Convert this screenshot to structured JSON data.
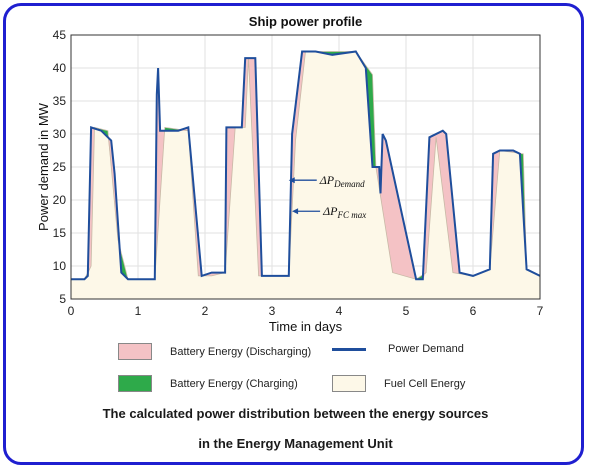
{
  "chart_data": {
    "type": "area",
    "title": "Ship power profile",
    "xlabel": "Time in days",
    "ylabel": "Power demand in MW",
    "xlim": [
      0,
      7
    ],
    "ylim": [
      5,
      45
    ],
    "xticks": [
      0,
      1,
      2,
      3,
      4,
      5,
      6,
      7
    ],
    "yticks": [
      5,
      10,
      15,
      20,
      25,
      30,
      35,
      40,
      45
    ],
    "grid": true,
    "annotations": [
      {
        "base": "ΔP",
        "sub": "Demand",
        "x": 3.25,
        "y": 23.0
      },
      {
        "base": "ΔP",
        "sub": "FC max",
        "x": 3.3,
        "y": 18.3
      }
    ],
    "demand": {
      "name": "Power Demand",
      "color": "#1f4e9c",
      "x": [
        0,
        0.2,
        0.25,
        0.3,
        0.45,
        0.6,
        0.65,
        0.75,
        0.85,
        1.25,
        1.28,
        1.3,
        1.33,
        1.6,
        1.75,
        1.95,
        2.1,
        2.3,
        2.32,
        2.55,
        2.6,
        2.75,
        2.85,
        3.25,
        3.3,
        3.45,
        3.55,
        3.65,
        3.9,
        4.25,
        4.4,
        4.5,
        4.6,
        4.62,
        4.65,
        4.7,
        5.15,
        5.25,
        5.35,
        5.55,
        5.6,
        5.8,
        6.0,
        6.25,
        6.3,
        6.4,
        6.6,
        6.7,
        6.8,
        7.0
      ],
      "y": [
        8,
        8,
        8.5,
        31,
        30.5,
        29,
        24,
        9,
        8,
        8,
        36,
        40,
        30.5,
        30.5,
        31,
        8.5,
        9,
        9,
        31,
        31,
        41.5,
        41.5,
        8.5,
        8.5,
        30,
        42.5,
        42.5,
        42.5,
        42,
        42.5,
        40,
        25,
        25,
        21,
        30,
        29,
        8,
        8,
        29.5,
        30.5,
        30,
        9,
        8.5,
        9.5,
        27,
        27.5,
        27.5,
        27,
        9.5,
        8.5
      ]
    },
    "fuel_cell": {
      "name": "Fuel Cell Energy",
      "color": "#fdf8e8",
      "x": [
        0,
        0.2,
        0.3,
        0.35,
        0.55,
        0.7,
        0.85,
        1.25,
        1.4,
        1.75,
        1.9,
        2.1,
        2.3,
        2.45,
        2.6,
        2.65,
        2.8,
        3.25,
        3.35,
        3.5,
        4.25,
        4.5,
        4.55,
        4.8,
        5.15,
        5.3,
        5.45,
        5.7,
        6.0,
        6.25,
        6.4,
        6.75,
        6.8,
        7.0
      ],
      "y": [
        8,
        8,
        10,
        31,
        30.5,
        14,
        8,
        8,
        31,
        30.5,
        8.5,
        8.5,
        9,
        31,
        31,
        41.5,
        8.5,
        8.5,
        29,
        42.5,
        42.5,
        39,
        25,
        9,
        8,
        9,
        29.5,
        9,
        8.5,
        9.5,
        27.5,
        27,
        9.5,
        8.5
      ]
    },
    "legend": [
      {
        "label": "Battery Energy (Discharging)",
        "color": "#f4c2c5",
        "kind": "swatch"
      },
      {
        "label": "Power Demand",
        "color": "#1f4e9c",
        "kind": "line"
      },
      {
        "label": "Battery Energy (Charging)",
        "color": "#2eaa4a",
        "kind": "swatch"
      },
      {
        "label": "Fuel Cell Energy",
        "color": "#fdf8e8",
        "kind": "swatch"
      }
    ]
  },
  "caption": {
    "line1": "The calculated power distribution between the energy sources",
    "line2": "in the Energy Management Unit"
  },
  "colors": {
    "frame": "#1f1fd0",
    "discharge": "#f4c2c5",
    "charge": "#2eaa4a",
    "demand": "#1f4e9c"
  }
}
